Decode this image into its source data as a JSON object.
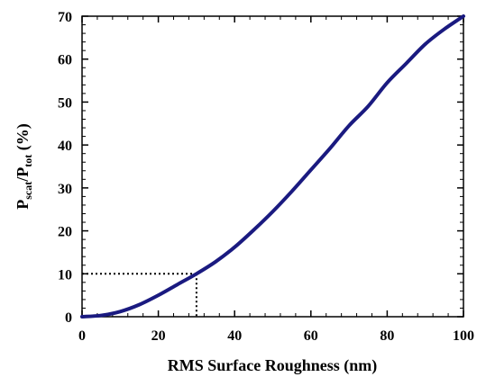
{
  "chart_data": {
    "type": "line",
    "title": "",
    "xlabel": "RMS Surface Roughness (nm)",
    "ylabel": {
      "main_1": "P",
      "sub_1": "scat",
      "slash": "/",
      "main_2": "P",
      "sub_2": "tot",
      "unit": " (%)"
    },
    "xlim": [
      0,
      100
    ],
    "ylim": [
      0,
      70
    ],
    "x_ticks": [
      0,
      20,
      40,
      60,
      80,
      100
    ],
    "y_ticks": [
      0,
      10,
      20,
      30,
      40,
      50,
      60,
      70
    ],
    "grid": false,
    "legend": "none",
    "colors": {
      "line": "#1a1a80",
      "reference": "#000000"
    },
    "series": [
      {
        "x": [
          0,
          5,
          10,
          15,
          20,
          25,
          30,
          35,
          40,
          45,
          50,
          55,
          60,
          65,
          70,
          75,
          80,
          85,
          90,
          95,
          100
        ],
        "values": [
          0,
          0.3,
          1.2,
          2.8,
          5.0,
          7.5,
          10,
          12.8,
          16.2,
          20.2,
          24.5,
          29.2,
          34.2,
          39.2,
          44.5,
          49.0,
          54.5,
          59.0,
          63.5,
          67.0,
          70
        ]
      }
    ],
    "reference_point": {
      "x": 30,
      "y": 10
    }
  }
}
